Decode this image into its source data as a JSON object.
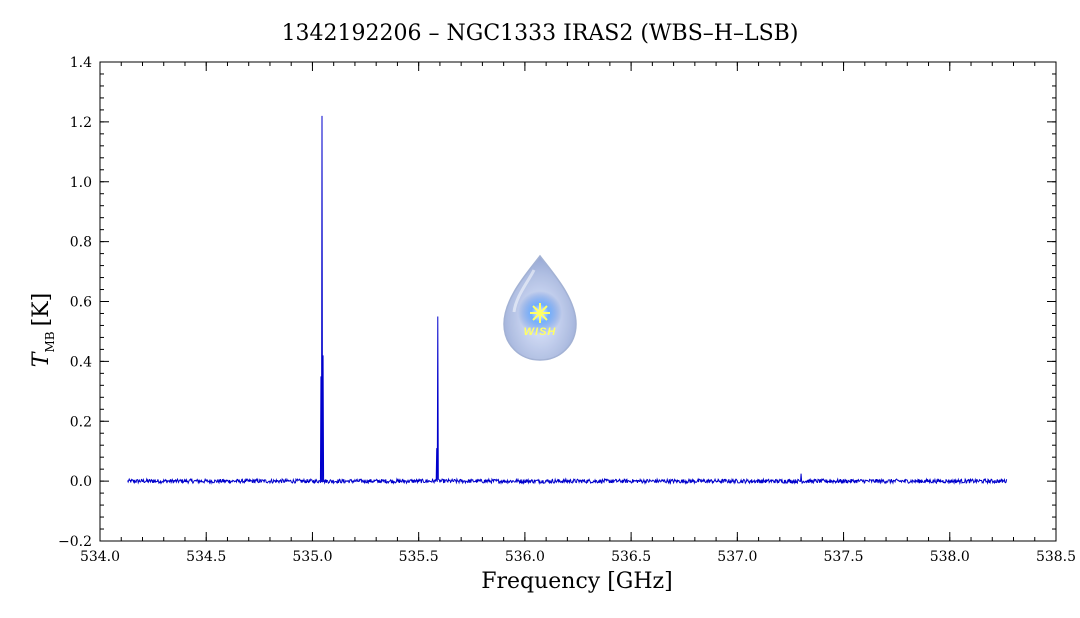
{
  "chart_data": {
    "type": "line",
    "title": "1342192206 – NGC1333 IRAS2 (WBS–H–LSB)",
    "xlabel": "Frequency [GHz]",
    "ylabel_symbol": "T",
    "ylabel_subscript": "MB",
    "ylabel_unit": "[K]",
    "xlim": [
      534.0,
      538.5
    ],
    "ylim": [
      -0.2,
      1.4
    ],
    "x_ticks": [
      534.0,
      534.5,
      535.0,
      535.5,
      536.0,
      536.5,
      537.0,
      537.5,
      538.0,
      538.5
    ],
    "x_tick_labels": [
      "534.0",
      "534.5",
      "535.0",
      "535.5",
      "536.0",
      "536.5",
      "537.0",
      "537.5",
      "538.0",
      "538.5"
    ],
    "y_ticks": [
      -0.2,
      0.0,
      0.2,
      0.4,
      0.6,
      0.8,
      1.0,
      1.2,
      1.4
    ],
    "y_tick_labels": [
      "−0.2",
      "0.0",
      "0.2",
      "0.4",
      "0.6",
      "0.8",
      "1.0",
      "1.2",
      "1.4"
    ],
    "series_color": "#0000cc",
    "series": [
      {
        "x_range": [
          534.13,
          538.27
        ],
        "baseline": 0.0,
        "noise_rms": 0.004,
        "peaks": [
          {
            "x": 535.04,
            "y": 0.35
          },
          {
            "x": 535.045,
            "y": 1.22
          },
          {
            "x": 535.05,
            "y": 0.42
          },
          {
            "x": 535.585,
            "y": 0.11
          },
          {
            "x": 535.59,
            "y": 0.55
          },
          {
            "x": 537.3,
            "y": 0.025
          }
        ]
      }
    ],
    "grid": false
  },
  "logo": {
    "text": "WISH",
    "color_drop": "#a9b9e0",
    "color_star": "#ffff66"
  }
}
